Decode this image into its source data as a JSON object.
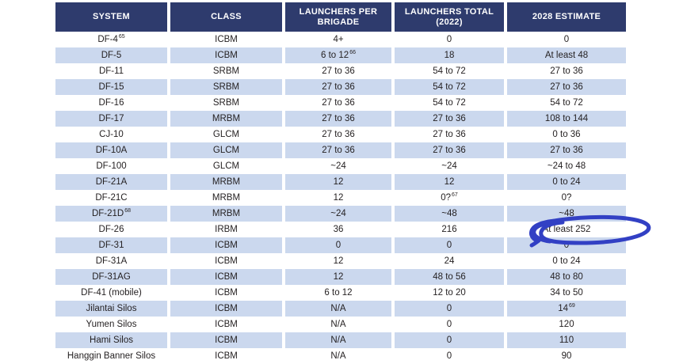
{
  "colors": {
    "header_bg": "#2e3b6d",
    "header_text": "#ffffff",
    "stripe_bg": "#cbd8ee",
    "body_text": "#231f20",
    "annotation_ink": "#3240c4"
  },
  "table": {
    "columns": [
      {
        "label": "SYSTEM"
      },
      {
        "label": "CLASS"
      },
      {
        "label": "LAUNCHERS PER BRIGADE"
      },
      {
        "label": "LAUNCHERS TOTAL (2022)"
      },
      {
        "label": "2028 ESTIMATE"
      }
    ],
    "rows": [
      [
        {
          "t": "DF-4",
          "s": "65"
        },
        "ICBM",
        "4+",
        "0",
        "0"
      ],
      [
        "DF-5",
        "ICBM",
        {
          "t": "6 to 12",
          "s": "66"
        },
        "18",
        "At least 48"
      ],
      [
        "DF-11",
        "SRBM",
        "27 to 36",
        "54 to 72",
        "27 to 36"
      ],
      [
        "DF-15",
        "SRBM",
        "27 to 36",
        "54 to 72",
        "27 to 36"
      ],
      [
        "DF-16",
        "SRBM",
        "27 to 36",
        "54 to 72",
        "54 to 72"
      ],
      [
        "DF-17",
        "MRBM",
        "27 to 36",
        "27 to 36",
        "108 to 144"
      ],
      [
        "CJ-10",
        "GLCM",
        "27 to 36",
        "27 to 36",
        "0 to 36"
      ],
      [
        "DF-10A",
        "GLCM",
        "27 to 36",
        "27 to 36",
        "27 to 36"
      ],
      [
        "DF-100",
        "GLCM",
        "~24",
        "~24",
        "~24 to 48"
      ],
      [
        "DF-21A",
        "MRBM",
        "12",
        "12",
        "0 to 24"
      ],
      [
        "DF-21C",
        "MRBM",
        "12",
        {
          "t": "0?",
          "s": "67"
        },
        "0?"
      ],
      [
        {
          "t": "DF-21D",
          "s": "68"
        },
        "MRBM",
        "~24",
        "~48",
        "~48"
      ],
      [
        "DF-26",
        "IRBM",
        "36",
        "216",
        "At least 252"
      ],
      [
        "DF-31",
        "ICBM",
        "0",
        "0",
        "0"
      ],
      [
        "DF-31A",
        "ICBM",
        "12",
        "24",
        "0 to 24"
      ],
      [
        "DF-31AG",
        "ICBM",
        "12",
        "48 to 56",
        "48 to 80"
      ],
      [
        "DF-41 (mobile)",
        "ICBM",
        "6 to 12",
        "12 to 20",
        "34 to 50"
      ],
      [
        "Jilantai Silos",
        "ICBM",
        "N/A",
        "0",
        {
          "t": "14",
          "s": "69"
        }
      ],
      [
        "Yumen Silos",
        "ICBM",
        "N/A",
        "0",
        "120"
      ],
      [
        "Hami Silos",
        "ICBM",
        "N/A",
        "0",
        "110"
      ],
      [
        "Hanggin Banner Silos",
        "ICBM",
        "N/A",
        "0",
        "90"
      ]
    ],
    "annotation": {
      "type": "hand-drawn-circle",
      "target_text": "At least 252",
      "row": "DF-26",
      "column": "2028 ESTIMATE",
      "color": "#3240c4"
    }
  }
}
